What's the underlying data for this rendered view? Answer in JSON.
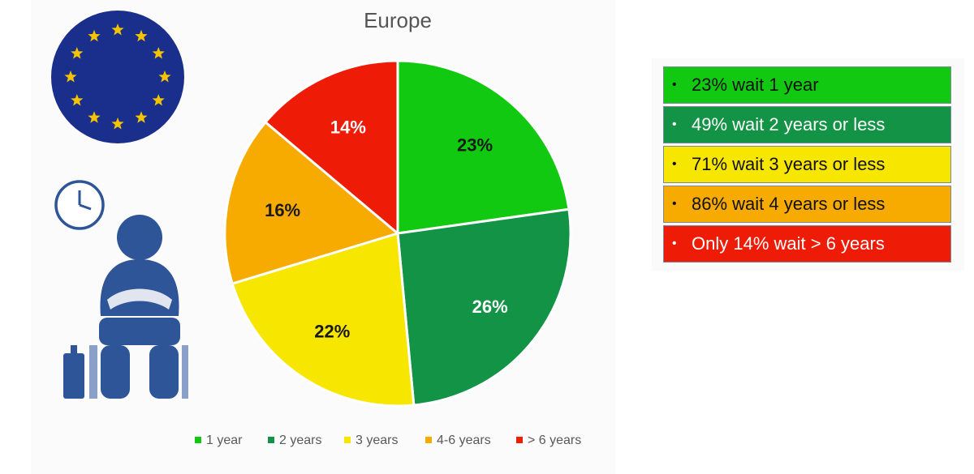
{
  "chart_data": {
    "type": "pie",
    "title": "Europe",
    "categories": [
      "1 year",
      "2 years",
      "3 years",
      "4-6 years",
      "> 6 years"
    ],
    "values": [
      23,
      26,
      22,
      16,
      14
    ],
    "labels": [
      "23%",
      "26%",
      "22%",
      "16%",
      "14%"
    ],
    "colors": [
      "#11c911",
      "#129345",
      "#f7e600",
      "#f7ab00",
      "#ee1c07"
    ],
    "label_colors": [
      "#1a1a1a",
      "#ffffff",
      "#1a1a1a",
      "#1a1a1a",
      "#ffffff"
    ],
    "legend_position": "bottom"
  },
  "summary": {
    "items": [
      {
        "text": "23% wait 1 year",
        "color": "#11c911",
        "text_color": "#111111"
      },
      {
        "text": "49% wait 2 years or less",
        "color": "#129345",
        "text_color": "#ffffff"
      },
      {
        "text": "71% wait 3 years or less",
        "color": "#f7e600",
        "text_color": "#111111"
      },
      {
        "text": "86% wait 4 years or less",
        "color": "#f7ab00",
        "text_color": "#111111"
      },
      {
        "text": "Only 14% wait > 6 years",
        "color": "#ee1c07",
        "text_color": "#ffffff"
      }
    ],
    "bullet": "•"
  },
  "icons": {
    "flag": "eu-flag-icon",
    "clock": "clock-icon",
    "person": "waiting-person-icon",
    "luggage": "luggage-icon"
  },
  "colors": {
    "eu_blue": "#1a2f8c",
    "eu_star": "#f5c400",
    "icon_blue": "#2e5597"
  }
}
